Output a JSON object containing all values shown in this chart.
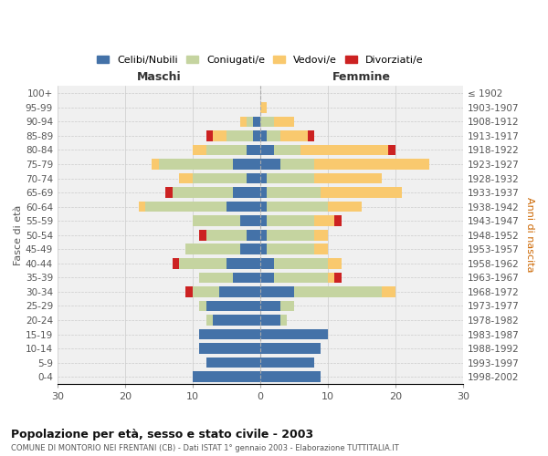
{
  "age_groups": [
    "100+",
    "95-99",
    "90-94",
    "85-89",
    "80-84",
    "75-79",
    "70-74",
    "65-69",
    "60-64",
    "55-59",
    "50-54",
    "45-49",
    "40-44",
    "35-39",
    "30-34",
    "25-29",
    "20-24",
    "15-19",
    "10-14",
    "5-9",
    "0-4"
  ],
  "birth_years": [
    "≤ 1902",
    "1903-1907",
    "1908-1912",
    "1913-1917",
    "1918-1922",
    "1923-1927",
    "1928-1932",
    "1933-1937",
    "1938-1942",
    "1943-1947",
    "1948-1952",
    "1953-1957",
    "1958-1962",
    "1963-1967",
    "1968-1972",
    "1973-1977",
    "1978-1982",
    "1983-1987",
    "1988-1992",
    "1993-1997",
    "1998-2002"
  ],
  "male": {
    "celibi": [
      0,
      0,
      1,
      1,
      2,
      4,
      2,
      4,
      5,
      3,
      2,
      3,
      5,
      4,
      6,
      8,
      7,
      9,
      9,
      8,
      10
    ],
    "coniugati": [
      0,
      0,
      1,
      4,
      6,
      11,
      8,
      9,
      12,
      7,
      6,
      8,
      7,
      5,
      4,
      1,
      1,
      0,
      0,
      0,
      0
    ],
    "vedovi": [
      0,
      0,
      1,
      2,
      2,
      1,
      2,
      0,
      1,
      0,
      0,
      0,
      0,
      0,
      0,
      0,
      0,
      0,
      0,
      0,
      0
    ],
    "divorziati": [
      0,
      0,
      0,
      1,
      0,
      0,
      0,
      1,
      0,
      0,
      1,
      0,
      1,
      0,
      1,
      0,
      0,
      0,
      0,
      0,
      0
    ]
  },
  "female": {
    "nubili": [
      0,
      0,
      0,
      1,
      2,
      3,
      1,
      1,
      1,
      1,
      1,
      1,
      2,
      2,
      5,
      3,
      3,
      10,
      9,
      8,
      9
    ],
    "coniugate": [
      0,
      0,
      2,
      2,
      4,
      5,
      7,
      8,
      9,
      7,
      7,
      7,
      8,
      8,
      13,
      2,
      1,
      0,
      0,
      0,
      0
    ],
    "vedove": [
      0,
      1,
      3,
      4,
      13,
      17,
      10,
      12,
      5,
      3,
      2,
      2,
      2,
      1,
      2,
      0,
      0,
      0,
      0,
      0,
      0
    ],
    "divorziate": [
      0,
      0,
      0,
      1,
      1,
      0,
      0,
      0,
      0,
      1,
      0,
      0,
      0,
      1,
      0,
      0,
      0,
      0,
      0,
      0,
      0
    ]
  },
  "colors": {
    "celibi": "#4472a8",
    "coniugati": "#c5d4a0",
    "vedovi": "#f9c96e",
    "divorziati": "#cc2222"
  },
  "xlim": 30,
  "title": "Popolazione per età, sesso e stato civile - 2003",
  "subtitle": "COMUNE DI MONTORIO NEI FRENTANI (CB) - Dati ISTAT 1° gennaio 2003 - Elaborazione TUTTITALIA.IT",
  "ylabel_left": "Fasce di età",
  "ylabel_right": "Anni di nascita",
  "xlabel_left": "Maschi",
  "xlabel_right": "Femmine",
  "legend_labels": [
    "Celibi/Nubili",
    "Coniugati/e",
    "Vedovi/e",
    "Divorziati/e"
  ],
  "bg_color": "#ffffff",
  "grid_color": "#cccccc"
}
